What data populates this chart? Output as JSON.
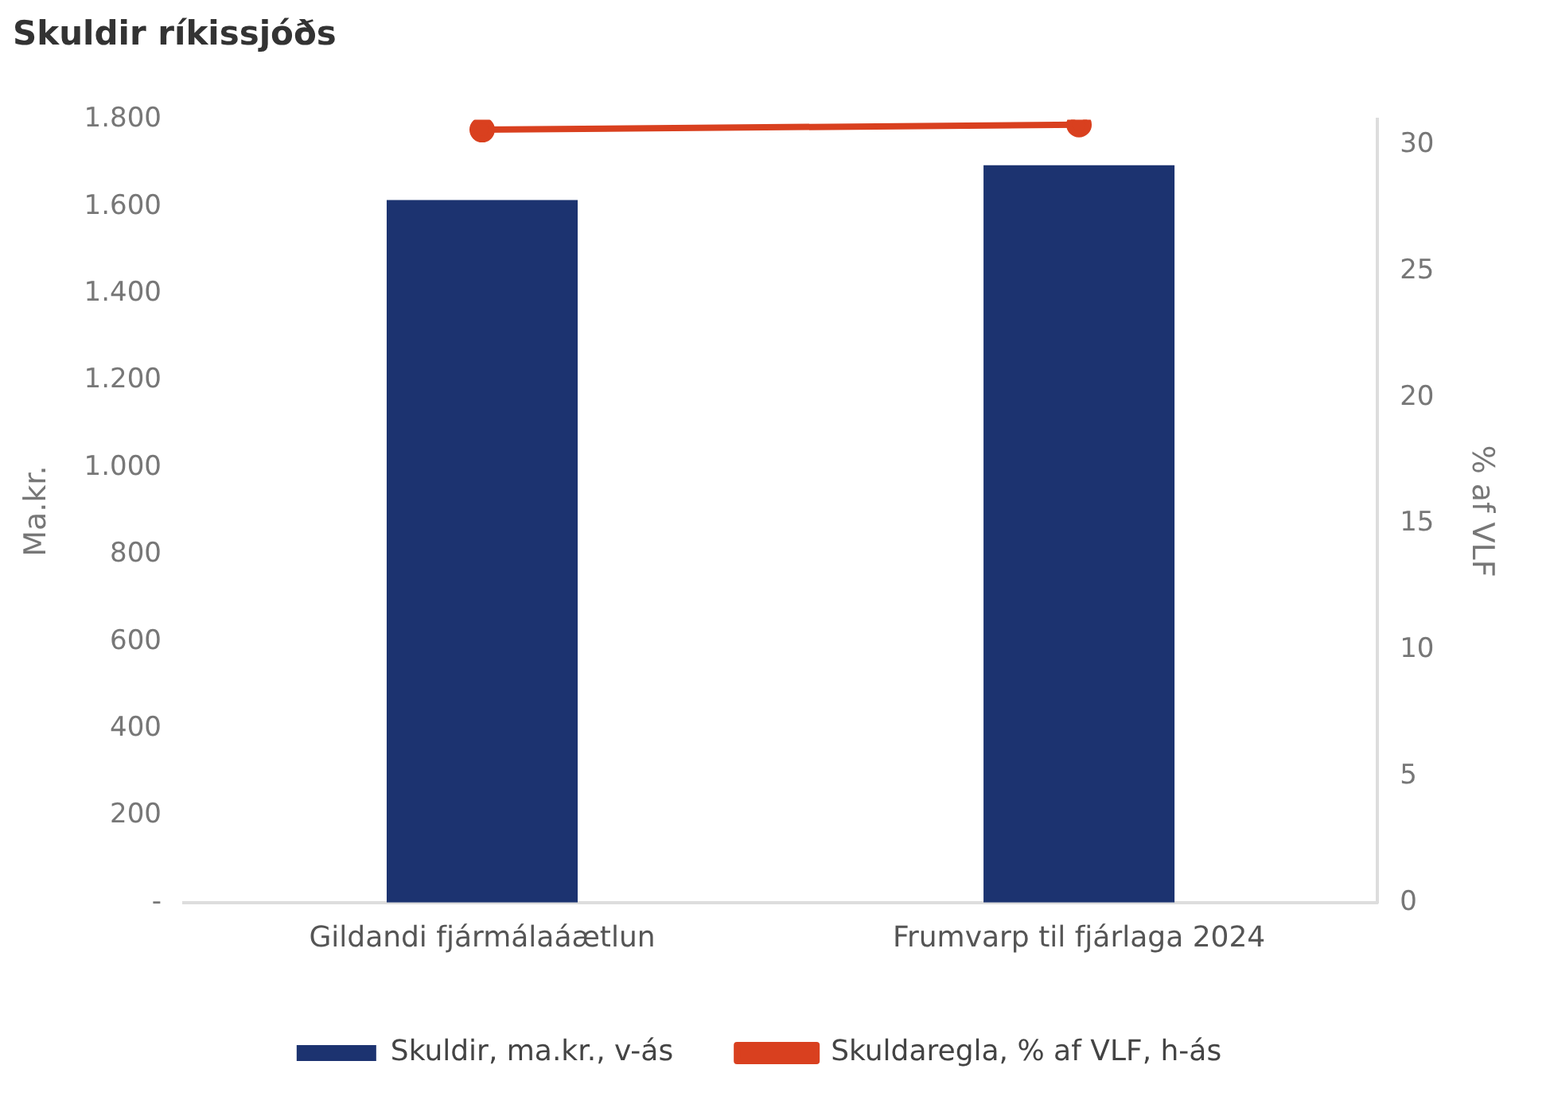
{
  "chart_data": {
    "type": "bar",
    "title": "Skuldir ríkissjóðs",
    "ylabel": "Ma.kr.",
    "y2label": "% af VLF",
    "categories": [
      "Gildandi fjármálaáætlun",
      "Frumvarp til fjárlaga 2024"
    ],
    "series": [
      {
        "name": "Skuldir, ma.kr., v-ás",
        "color": "#1c3370",
        "values": [
          1615,
          1695
        ]
      },
      {
        "name": "Skuldaregla, % af VLF, h-ás",
        "type": "line",
        "axis": "y2",
        "color": "#d9401f",
        "values": [
          30.6,
          30.8
        ]
      }
    ],
    "ylim": [
      0,
      1800
    ],
    "yticks": [
      {
        "value": 0,
        "label": "-"
      },
      200,
      400,
      600,
      800,
      {
        "value": 1000,
        "label": "1.000"
      },
      {
        "value": 1200,
        "label": "1.200"
      },
      {
        "value": 1400,
        "label": "1.400"
      },
      {
        "value": 1600,
        "label": "1.600"
      },
      {
        "value": 1800,
        "label": "1.800"
      }
    ],
    "y2lim": [
      0,
      31
    ],
    "y2ticks": [
      0,
      5,
      10,
      15,
      20,
      25,
      30
    ],
    "grid": false,
    "legend": "bottom",
    "marker": "circle"
  }
}
